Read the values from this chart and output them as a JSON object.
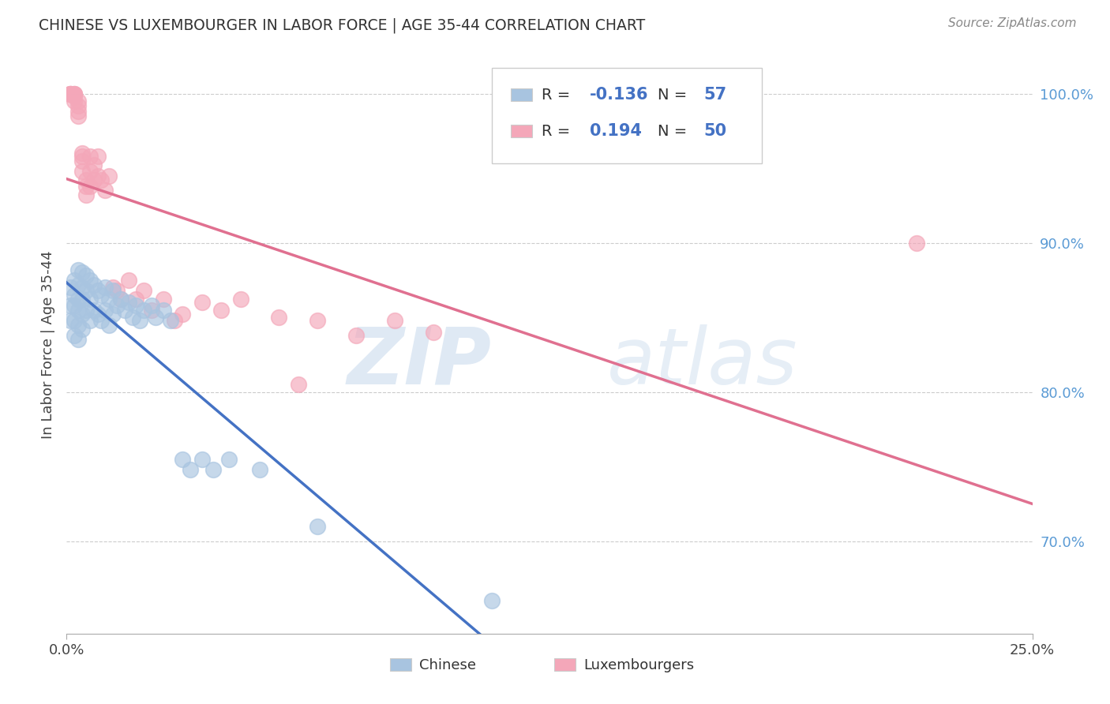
{
  "title": "CHINESE VS LUXEMBOURGER IN LABOR FORCE | AGE 35-44 CORRELATION CHART",
  "source_text": "Source: ZipAtlas.com",
  "ylabel": "In Labor Force | Age 35-44",
  "xlim": [
    0.0,
    0.25
  ],
  "ylim": [
    0.638,
    1.025
  ],
  "ytick_labels": [
    "70.0%",
    "80.0%",
    "90.0%",
    "100.0%"
  ],
  "ytick_values": [
    0.7,
    0.8,
    0.9,
    1.0
  ],
  "xtick_labels": [
    "0.0%",
    "25.0%"
  ],
  "xtick_values": [
    0.0,
    0.25
  ],
  "legend_R_chinese": "-0.136",
  "legend_N_chinese": "57",
  "legend_R_luxembourger": "0.194",
  "legend_N_luxembourger": "50",
  "chinese_color": "#a8c4e0",
  "luxembourger_color": "#f4a7b9",
  "chinese_line_color": "#4472C4",
  "luxembourger_line_color": "#E07090",
  "watermark_zip": "ZIP",
  "watermark_atlas": "atlas",
  "background_color": "#ffffff",
  "grid_color": "#cccccc",
  "chinese_x": [
    0.001,
    0.001,
    0.001,
    0.002,
    0.002,
    0.002,
    0.002,
    0.002,
    0.003,
    0.003,
    0.003,
    0.003,
    0.003,
    0.003,
    0.004,
    0.004,
    0.004,
    0.004,
    0.004,
    0.005,
    0.005,
    0.005,
    0.006,
    0.006,
    0.006,
    0.007,
    0.007,
    0.008,
    0.008,
    0.009,
    0.009,
    0.01,
    0.01,
    0.011,
    0.011,
    0.012,
    0.012,
    0.013,
    0.014,
    0.015,
    0.016,
    0.017,
    0.018,
    0.019,
    0.02,
    0.022,
    0.023,
    0.025,
    0.027,
    0.03,
    0.032,
    0.035,
    0.038,
    0.042,
    0.05,
    0.065,
    0.11
  ],
  "chinese_y": [
    0.87,
    0.858,
    0.848,
    0.875,
    0.865,
    0.858,
    0.848,
    0.838,
    0.882,
    0.872,
    0.862,
    0.855,
    0.845,
    0.835,
    0.88,
    0.87,
    0.862,
    0.852,
    0.842,
    0.878,
    0.868,
    0.855,
    0.875,
    0.862,
    0.848,
    0.872,
    0.855,
    0.868,
    0.852,
    0.865,
    0.848,
    0.87,
    0.855,
    0.862,
    0.845,
    0.868,
    0.852,
    0.858,
    0.862,
    0.855,
    0.86,
    0.85,
    0.858,
    0.848,
    0.855,
    0.858,
    0.85,
    0.855,
    0.848,
    0.755,
    0.748,
    0.755,
    0.748,
    0.755,
    0.748,
    0.71,
    0.66
  ],
  "luxembourger_x": [
    0.001,
    0.001,
    0.001,
    0.001,
    0.002,
    0.002,
    0.002,
    0.002,
    0.002,
    0.003,
    0.003,
    0.003,
    0.003,
    0.004,
    0.004,
    0.004,
    0.004,
    0.005,
    0.005,
    0.005,
    0.006,
    0.006,
    0.006,
    0.007,
    0.007,
    0.008,
    0.008,
    0.009,
    0.01,
    0.011,
    0.012,
    0.013,
    0.014,
    0.016,
    0.018,
    0.02,
    0.022,
    0.025,
    0.028,
    0.03,
    0.035,
    0.04,
    0.045,
    0.055,
    0.06,
    0.065,
    0.075,
    0.085,
    0.095,
    0.22
  ],
  "luxembourger_y": [
    1.0,
    1.0,
    1.0,
    1.0,
    1.0,
    1.0,
    1.0,
    0.998,
    0.995,
    0.995,
    0.992,
    0.988,
    0.985,
    0.96,
    0.958,
    0.955,
    0.948,
    0.942,
    0.938,
    0.932,
    0.958,
    0.948,
    0.938,
    0.952,
    0.942,
    0.958,
    0.945,
    0.942,
    0.935,
    0.945,
    0.87,
    0.868,
    0.862,
    0.875,
    0.862,
    0.868,
    0.855,
    0.862,
    0.848,
    0.852,
    0.86,
    0.855,
    0.862,
    0.85,
    0.805,
    0.848,
    0.838,
    0.848,
    0.84,
    0.9
  ]
}
